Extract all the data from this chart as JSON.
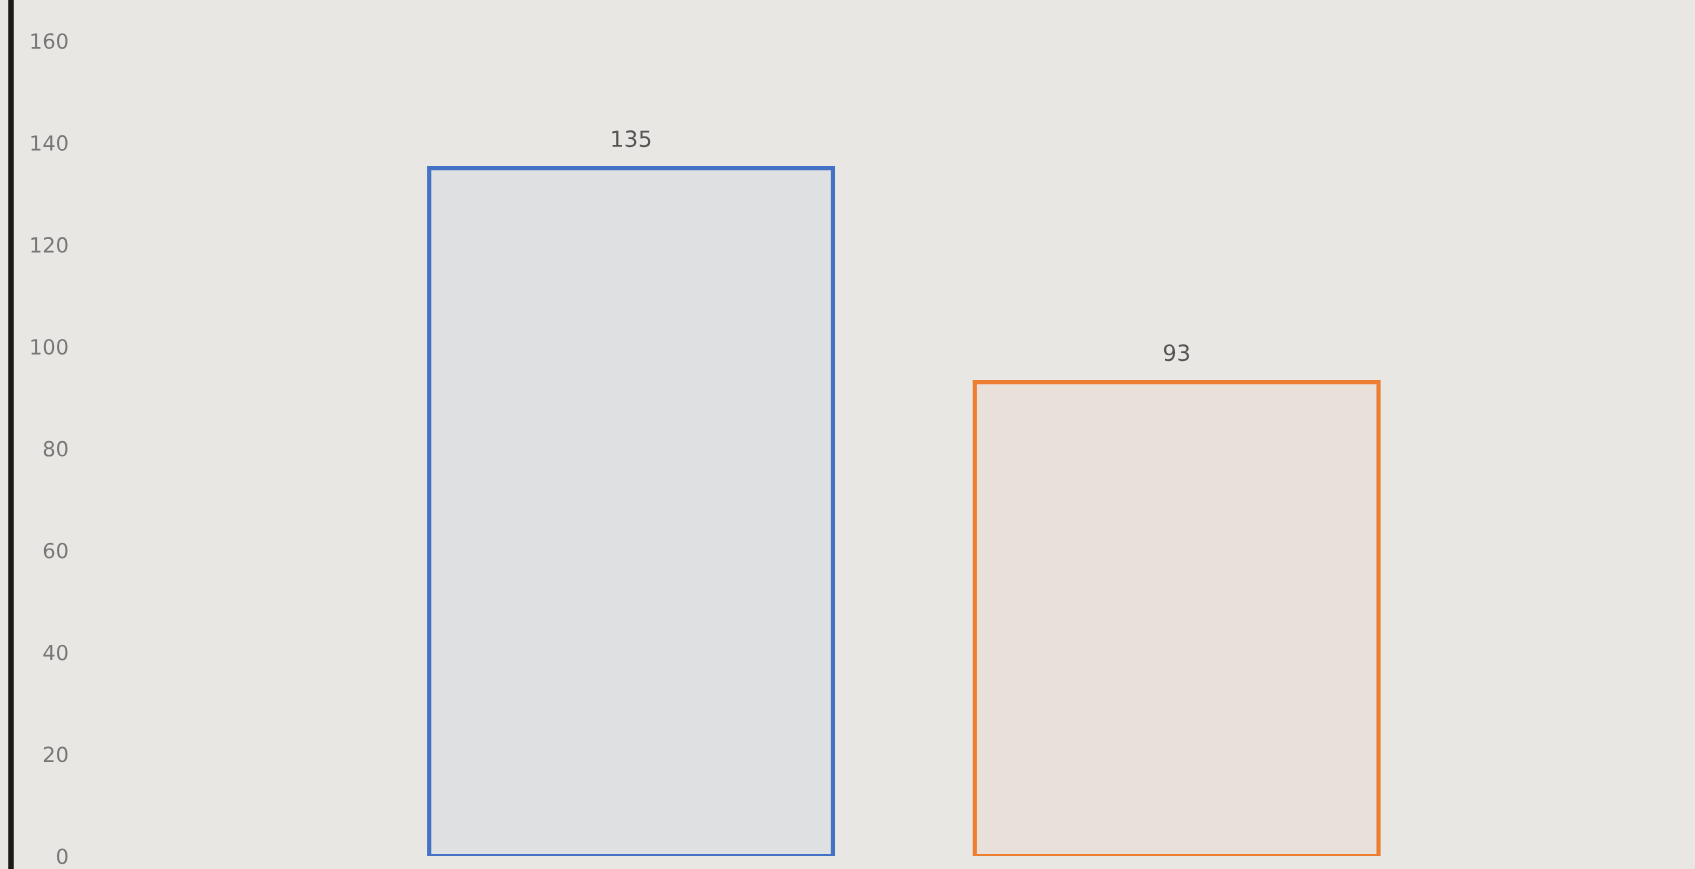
{
  "chart_data": {
    "type": "bar",
    "categories": [
      null,
      null
    ],
    "values": [
      135,
      93
    ],
    "colors": [
      "#4472c4",
      "#ed7d31"
    ],
    "ylim": [
      0,
      168
    ],
    "yticks": [
      0,
      20,
      40,
      60,
      80,
      100,
      120,
      140,
      160
    ],
    "data_labels": true,
    "grid": false
  }
}
